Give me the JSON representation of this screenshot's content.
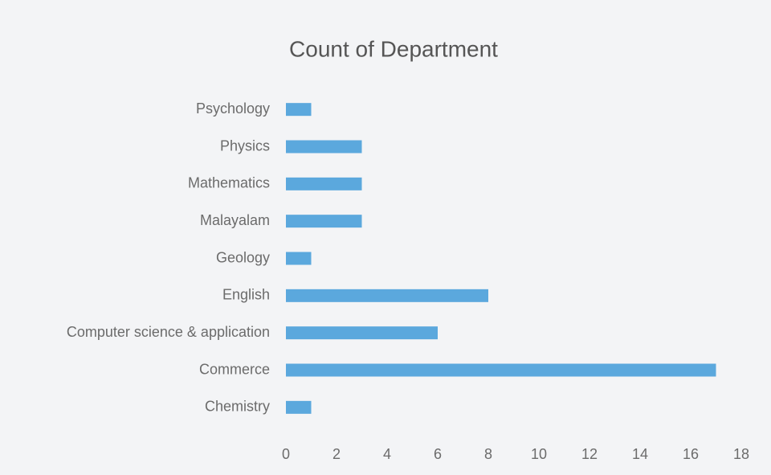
{
  "chart_data": {
    "type": "bar",
    "orientation": "horizontal",
    "title": "Count of Department",
    "categories": [
      "Psychology",
      "Physics",
      "Mathematics",
      "Malayalam",
      "Geology",
      "English",
      "Computer science & application",
      "Commerce",
      "Chemistry"
    ],
    "values": [
      1,
      3,
      3,
      3,
      1,
      8,
      6,
      17,
      1
    ],
    "color": "#5ba8dd",
    "xlim": [
      0,
      18
    ],
    "xticks": [
      0,
      2,
      4,
      6,
      8,
      10,
      12,
      14,
      16,
      18
    ],
    "grid": false
  }
}
